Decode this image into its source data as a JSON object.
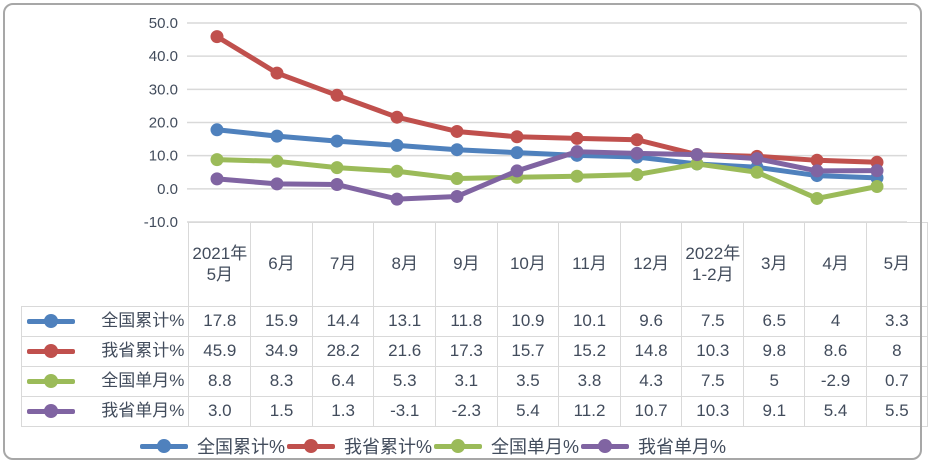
{
  "chart_data": {
    "type": "line",
    "title": "",
    "xlabel": "",
    "ylabel": "",
    "categories": [
      "2021年5月",
      "6月",
      "7月",
      "8月",
      "9月",
      "10月",
      "11月",
      "12月",
      "2022年1-2月",
      "3月",
      "4月",
      "5月"
    ],
    "series": [
      {
        "name": "全国累计%",
        "color": "#4F81BD",
        "values": [
          17.8,
          15.9,
          14.4,
          13.1,
          11.8,
          10.9,
          10.1,
          9.6,
          7.5,
          6.5,
          4,
          3.3
        ]
      },
      {
        "name": "我省累计%",
        "color": "#C0504D",
        "values": [
          45.9,
          34.9,
          28.2,
          21.6,
          17.3,
          15.7,
          15.2,
          14.8,
          10.3,
          9.8,
          8.6,
          8
        ]
      },
      {
        "name": "全国单月%",
        "color": "#9BBB59",
        "values": [
          8.8,
          8.3,
          6.4,
          5.3,
          3.1,
          3.5,
          3.8,
          4.3,
          7.5,
          5,
          -2.9,
          0.7
        ]
      },
      {
        "name": "我省单月%",
        "color": "#8064A2",
        "values": [
          3.0,
          1.5,
          1.3,
          -3.1,
          -2.3,
          5.4,
          11.2,
          10.7,
          10.3,
          9.1,
          5.4,
          5.5
        ]
      }
    ],
    "ylim": [
      -10,
      50
    ],
    "ytick_labels": [
      "50.0",
      "40.0",
      "30.0",
      "20.0",
      "10.0",
      "0.0",
      "-10.0"
    ],
    "grid": true,
    "legend_position": "bottom"
  },
  "table": {
    "columns": [
      "2021年5月",
      "6月",
      "7月",
      "8月",
      "9月",
      "10月",
      "11月",
      "12月",
      "2022年1-2月",
      "3月",
      "4月",
      "5月"
    ],
    "rows": [
      {
        "label": "全国累计%",
        "color": "#4F81BD",
        "cells": [
          "17.8",
          "15.9",
          "14.4",
          "13.1",
          "11.8",
          "10.9",
          "10.1",
          "9.6",
          "7.5",
          "6.5",
          "4",
          "3.3"
        ]
      },
      {
        "label": "我省累计%",
        "color": "#C0504D",
        "cells": [
          "45.9",
          "34.9",
          "28.2",
          "21.6",
          "17.3",
          "15.7",
          "15.2",
          "14.8",
          "10.3",
          "9.8",
          "8.6",
          "8"
        ]
      },
      {
        "label": "全国单月%",
        "color": "#9BBB59",
        "cells": [
          "8.8",
          "8.3",
          "6.4",
          "5.3",
          "3.1",
          "3.5",
          "3.8",
          "4.3",
          "7.5",
          "5",
          "-2.9",
          "0.7"
        ]
      },
      {
        "label": "我省单月%",
        "color": "#8064A2",
        "cells": [
          "3.0",
          "1.5",
          "1.3",
          "-3.1",
          "-2.3",
          "5.4",
          "11.2",
          "10.7",
          "10.3",
          "9.1",
          "5.4",
          "5.5"
        ]
      }
    ]
  },
  "legend": {
    "items": [
      {
        "label": "全国累计%",
        "color": "#4F81BD"
      },
      {
        "label": "我省累计%",
        "color": "#C0504D"
      },
      {
        "label": "全国单月%",
        "color": "#9BBB59"
      },
      {
        "label": "我省单月%",
        "color": "#8064A2"
      }
    ]
  },
  "colors": {
    "grid": "#D9D9D9",
    "axis_text": "#424C5C",
    "table_border": "#D9D9D9",
    "frame_border": "#A7A7A7"
  }
}
